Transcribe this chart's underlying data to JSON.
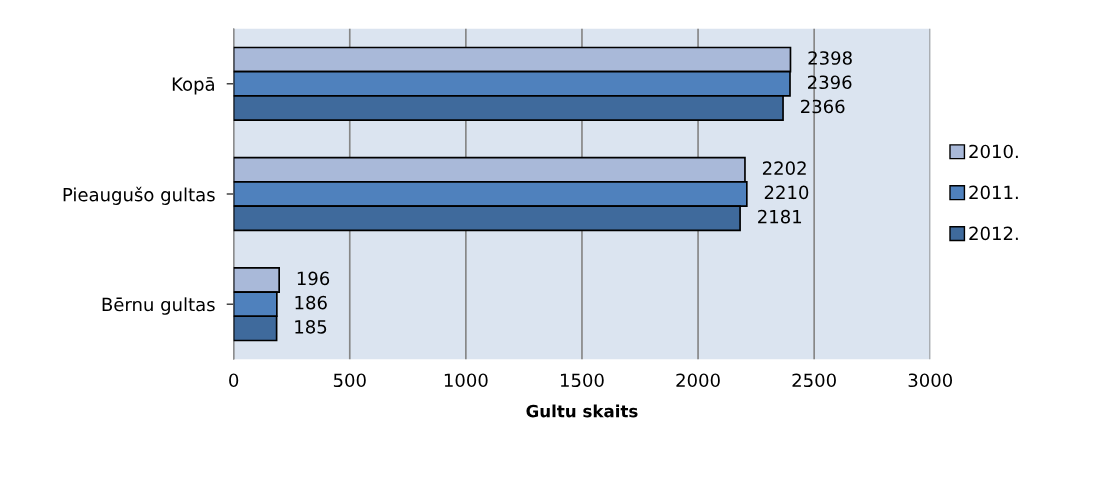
{
  "chart_data": {
    "type": "bar",
    "orientation": "horizontal",
    "xlabel": "Gultu skaits",
    "categories": [
      "Kopā",
      "Pieaugušo gultas",
      "Bērnu gultas"
    ],
    "series": [
      {
        "name": "2010.",
        "color": "#a9b9d9",
        "values": [
          2398,
          2202,
          196
        ]
      },
      {
        "name": "2011.",
        "color": "#4f81bd",
        "values": [
          2396,
          2210,
          186
        ]
      },
      {
        "name": "2012.",
        "color": "#3f6a9c",
        "values": [
          2366,
          2181,
          185
        ]
      }
    ],
    "xlim": [
      0,
      3000
    ],
    "xticks": [
      0,
      500,
      1000,
      1500,
      2000,
      2500,
      3000
    ],
    "grid": "x",
    "legend": "right",
    "data_labels": true
  }
}
